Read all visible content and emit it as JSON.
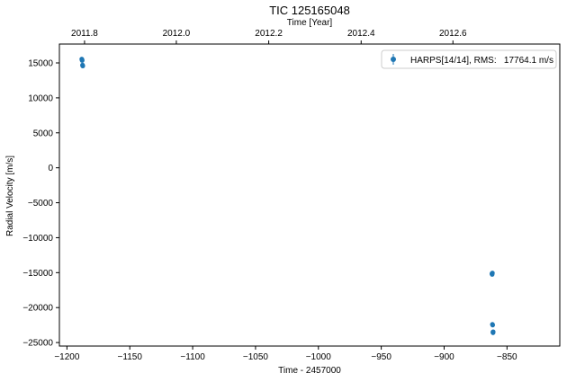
{
  "chart_data": {
    "type": "scatter",
    "title": "TIC 125165048",
    "xlabel": "Time - 2457000",
    "ylabel": "Radial Velocity [m/s]",
    "top_xlabel": "Time [Year]",
    "xlim": [
      -1206,
      -808
    ],
    "ylim": [
      -25500,
      17700
    ],
    "grid": false,
    "legend_position": "top-right",
    "x_ticks": [
      -1200,
      -1150,
      -1100,
      -1050,
      -1000,
      -950,
      -900,
      -850
    ],
    "x_tick_labels": [
      "−1200",
      "−1150",
      "−1100",
      "−1050",
      "−1000",
      "−950",
      "−900",
      "−850"
    ],
    "y_ticks": [
      15000,
      10000,
      5000,
      0,
      -5000,
      -10000,
      -15000,
      -20000,
      -25000
    ],
    "y_tick_labels": [
      "15000",
      "10000",
      "5000",
      "0",
      "−5000",
      "−10000",
      "−15000",
      "−20000",
      "−25000"
    ],
    "top_ticks": [
      -1186,
      -1113,
      -1039.5,
      -966,
      -893
    ],
    "top_tick_labels": [
      "2011.8",
      "2012.0",
      "2012.2",
      "2012.4",
      "2012.6"
    ],
    "series": [
      {
        "name": "HARPS[14/14], RMS:   17764.1 m/s",
        "color": "#1f77b4",
        "marker": "circle",
        "points": [
          {
            "x": -1188.2,
            "y": 15550
          },
          {
            "x": -1188.0,
            "y": 15450
          },
          {
            "x": -1187.9,
            "y": 15350
          },
          {
            "x": -1187.6,
            "y": 14700
          },
          {
            "x": -1187.5,
            "y": 14620
          },
          {
            "x": -1187.4,
            "y": 14560
          },
          {
            "x": -862.0,
            "y": -15150
          },
          {
            "x": -861.8,
            "y": -15250
          },
          {
            "x": -861.6,
            "y": -15050
          },
          {
            "x": -861.6,
            "y": -22400
          },
          {
            "x": -861.4,
            "y": -22500
          },
          {
            "x": -861.2,
            "y": -23500
          },
          {
            "x": -861.1,
            "y": -23600
          },
          {
            "x": -861.0,
            "y": -23450
          }
        ]
      }
    ]
  }
}
